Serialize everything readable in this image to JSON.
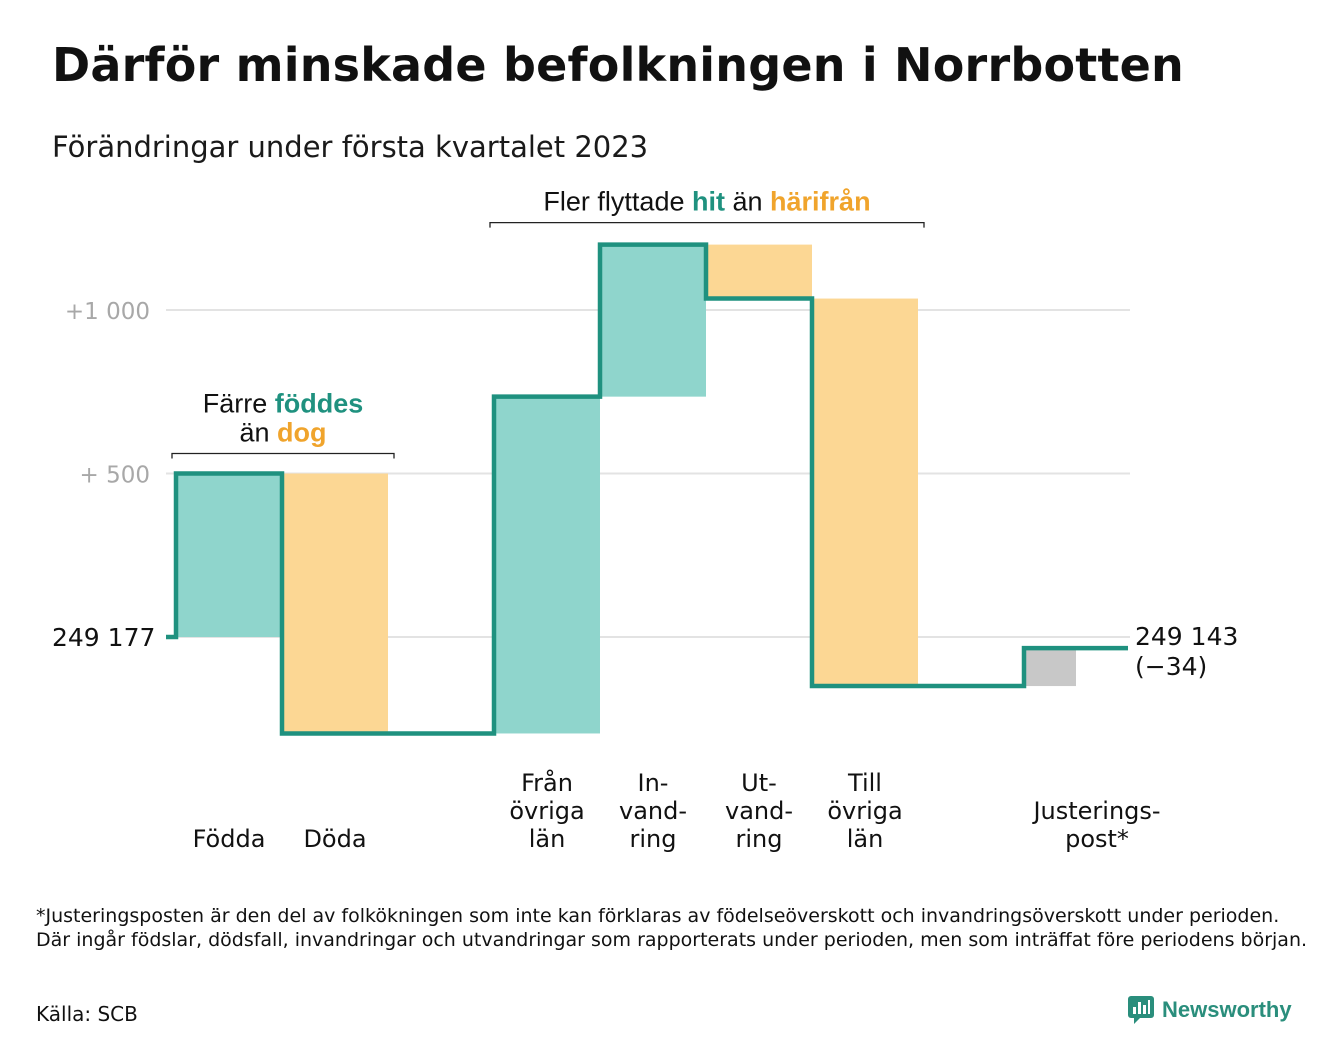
{
  "header": {
    "title": "Därför minskade befolkningen i Norrbotten",
    "subtitle": "Förändringar under första kvartalet 2023"
  },
  "chart_data": {
    "type": "waterfall",
    "start_value": 249177,
    "start_label": "249 177",
    "end_value": 249143,
    "end_label": "249 143",
    "end_change_label": "(−34)",
    "y_tick_labels": [
      "+1 000",
      "+ 500"
    ],
    "y_ticks": [
      1000,
      500
    ],
    "y_baseline": 0,
    "ylim": [
      -350,
      1200
    ],
    "steps": [
      {
        "category": "Födda",
        "label_lines": [
          "Födda"
        ],
        "change": 500,
        "slot": 0,
        "kind": "inflow"
      },
      {
        "category": "Döda",
        "label_lines": [
          "Döda"
        ],
        "change": -795,
        "slot": 1,
        "kind": "outflow"
      },
      {
        "category": "Från övriga län",
        "label_lines": [
          "Från",
          "övriga",
          "län"
        ],
        "change": 1030,
        "slot": 3,
        "kind": "inflow"
      },
      {
        "category": "Invandring",
        "label_lines": [
          "In-",
          "vand-",
          "ring"
        ],
        "change": 465,
        "slot": 4,
        "kind": "inflow"
      },
      {
        "category": "Utvandring",
        "label_lines": [
          "Ut-",
          "vand-",
          "ring"
        ],
        "change": -165,
        "slot": 5,
        "kind": "outflow"
      },
      {
        "category": "Till övriga län",
        "label_lines": [
          "Till",
          "övriga",
          "län"
        ],
        "change": -1185,
        "slot": 6,
        "kind": "outflow"
      },
      {
        "category": "Justeringspost*",
        "label_lines": [
          "Justerings-",
          "post*"
        ],
        "change": 116,
        "slot": 8,
        "kind": "adjustment"
      }
    ],
    "annotations": [
      {
        "lines": [
          [
            {
              "text": "Färre ",
              "role": "plain"
            },
            {
              "text": "föddes",
              "role": "in"
            }
          ],
          [
            {
              "text": "än ",
              "role": "plain"
            },
            {
              "text": "dog",
              "role": "out"
            }
          ]
        ],
        "from_slot": 0,
        "to_slot": 1
      },
      {
        "lines": [
          [
            {
              "text": "Fler flyttade ",
              "role": "plain"
            },
            {
              "text": "hit",
              "role": "in"
            },
            {
              "text": " än ",
              "role": "plain"
            },
            {
              "text": "härifrån",
              "role": "out"
            }
          ]
        ],
        "from_slot": 3,
        "to_slot": 6
      }
    ],
    "colors": {
      "inflow_fill": "#8fd5cc",
      "outflow_fill": "#fcd794",
      "adjustment_fill": "#c8c8c8",
      "line": "#1f917f",
      "in_text": "#1f917f",
      "out_text": "#f0a42c",
      "grid": "#e3e3e3",
      "tick_text": "#a8a8a8",
      "bracket": "#222222"
    }
  },
  "footnote": "*Justeringsposten är den del av folkökningen som inte kan förklaras av födelseöverskott och invandringsöverskott under perioden. Där ingår födslar, dödsfall, invandringar och utvandringar som rapporterats under perioden, men som inträffat före periodens början.",
  "source": "Källa: SCB",
  "brand": {
    "name": "Newsworthy",
    "icon": "chart-logo-icon"
  }
}
